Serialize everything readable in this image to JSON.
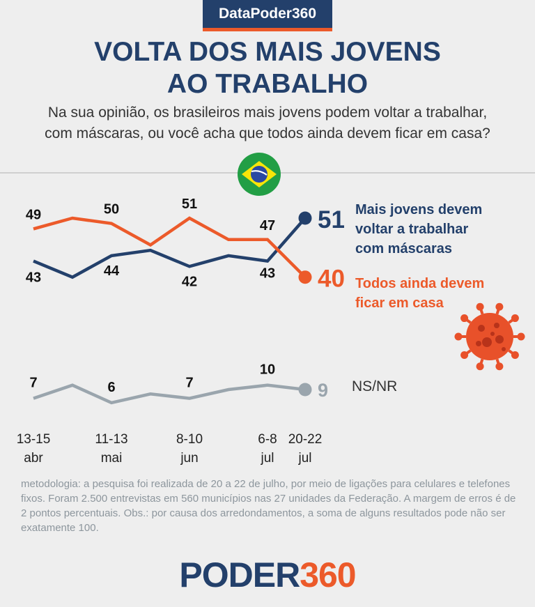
{
  "brand": "DataPoder360",
  "title_lines": [
    "VOLTA DOS MAIS JOVENS",
    "AO TRABALHO"
  ],
  "question_lines": [
    "Na sua opinião, os brasileiros mais jovens podem voltar a trabalhar,",
    "com máscaras, ou você acha que todos ainda devem ficar em casa?"
  ],
  "colors": {
    "navy": "#23406b",
    "orange": "#ec5a2a",
    "gray": "#9aa5ad",
    "virus": "#e8512a",
    "flag_green": "#229e45",
    "flag_yellow": "#f8e509",
    "flag_blue": "#2b49a3"
  },
  "icons": [
    "brazil-flag-icon",
    "coronavirus-icon"
  ],
  "chart_data": {
    "type": "line",
    "x": [
      "13-15 abr",
      "",
      "11-13 mai",
      "",
      "8-10 jun",
      "",
      "6-8 jul",
      "20-22 jul"
    ],
    "x_labels": [
      {
        "index": 0,
        "line1": "13-15",
        "line2": "abr"
      },
      {
        "index": 2,
        "line1": "11-13",
        "line2": "mai"
      },
      {
        "index": 4,
        "line1": "8-10",
        "line2": "jun"
      },
      {
        "index": 6,
        "line1": "6-8",
        "line2": "jul"
      },
      {
        "index": 7,
        "line1": "20-22",
        "line2": "jul"
      }
    ],
    "series": [
      {
        "key": "jovens",
        "name": "Mais jovens devem voltar a trabalhar com máscaras",
        "name_lines": [
          "Mais jovens devem",
          "voltar a trabalhar",
          "com máscaras"
        ],
        "color": "#23406b",
        "values": [
          43,
          40,
          44,
          45,
          42,
          44,
          43,
          51
        ],
        "labels": [
          {
            "index": 0,
            "text": "43"
          },
          {
            "index": 2,
            "text": "44"
          },
          {
            "index": 4,
            "text": "42"
          },
          {
            "index": 6,
            "text": "43"
          }
        ],
        "final_label": "51"
      },
      {
        "key": "casa",
        "name": "Todos ainda devem ficar em casa",
        "name_lines": [
          "Todos ainda devem",
          "ficar em casa"
        ],
        "color": "#ec5a2a",
        "values": [
          49,
          51,
          50,
          46,
          51,
          47,
          47,
          40
        ],
        "labels": [
          {
            "index": 0,
            "text": "49"
          },
          {
            "index": 2,
            "text": "50"
          },
          {
            "index": 4,
            "text": "51"
          },
          {
            "index": 6,
            "text": "47"
          }
        ],
        "final_label": "40"
      },
      {
        "key": "nsnr",
        "name": "NS/NR",
        "name_lines": [
          "NS/NR"
        ],
        "color": "#9aa5ad",
        "values": [
          7,
          10,
          6,
          8,
          7,
          9,
          10,
          9
        ],
        "labels": [
          {
            "index": 0,
            "text": "7"
          },
          {
            "index": 2,
            "text": "6"
          },
          {
            "index": 4,
            "text": "7"
          },
          {
            "index": 6,
            "text": "10"
          }
        ],
        "final_label": "9"
      }
    ]
  },
  "footnote": "metodologia: a pesquisa foi realizada de 20 a 22 de julho, por meio de ligações para celulares e telefones fixos. Foram 2.500 entrevistas em 560 municípios nas 27 unidades da Federação. A margem de erros é de 2 pontos percentuais. Obs.: por causa dos arredondamentos, a soma de alguns resultados pode não ser exatamente 100.",
  "logo": {
    "word": "PODER",
    "number": "360"
  }
}
